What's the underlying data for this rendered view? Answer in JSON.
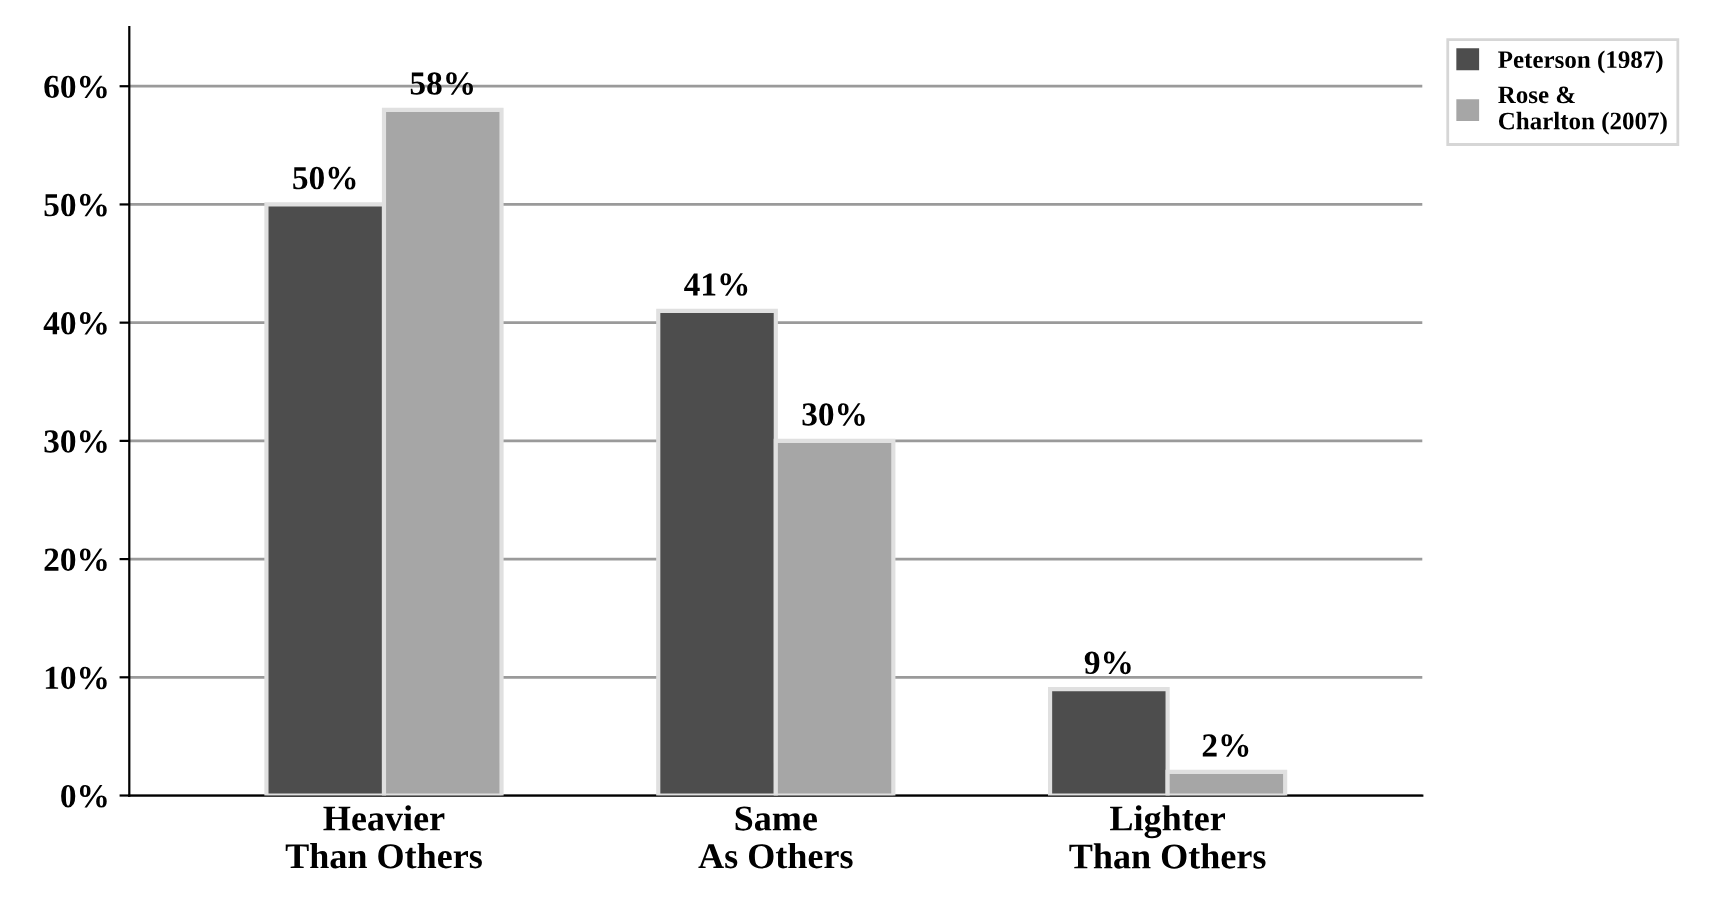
{
  "chart_data": {
    "type": "bar",
    "categories": [
      "Heavier\nThan Others",
      "Same\nAs Others",
      "Lighter\nThan Others"
    ],
    "series": [
      {
        "name": "Peterson (1987)",
        "color": "#4d4d4d",
        "values": [
          50,
          41,
          9
        ]
      },
      {
        "name": "Rose &\nCharlton (2007)",
        "color": "#a6a6a6",
        "values": [
          58,
          30,
          2
        ]
      }
    ],
    "ylim": [
      0,
      65
    ],
    "yticks": [
      {
        "value": 0,
        "label": "0%"
      },
      {
        "value": 10,
        "label": "10%"
      },
      {
        "value": 20,
        "label": "20%"
      },
      {
        "value": 30,
        "label": "30%"
      },
      {
        "value": 40,
        "label": "40%"
      },
      {
        "value": 50,
        "label": "50%"
      },
      {
        "value": 60,
        "label": "60%"
      }
    ],
    "value_labels": [
      [
        "50%",
        "41%",
        "9%"
      ],
      [
        "58%",
        "30%",
        "2%"
      ]
    ],
    "grid": "y",
    "legend": "top right"
  }
}
